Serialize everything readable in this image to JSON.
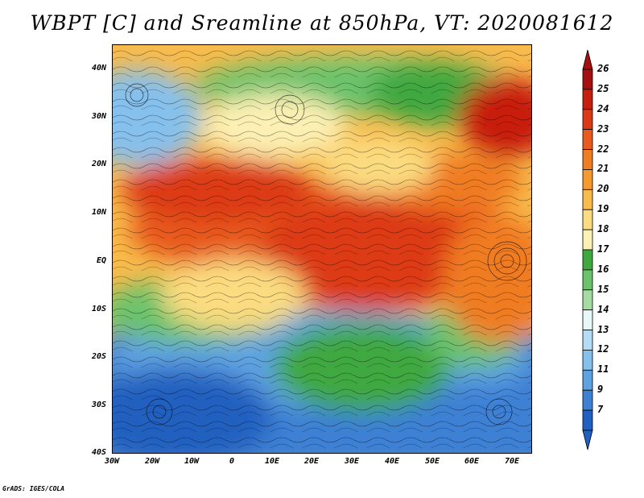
{
  "title": "WBPT [C] and Sreamline at 850hPa, VT: 2020081612",
  "credit": "GrADS: IGES/COLA",
  "map": {
    "lat_ticks": [
      "40N",
      "30N",
      "20N",
      "10N",
      "EQ",
      "10S",
      "20S",
      "30S",
      "40S"
    ],
    "lon_ticks": [
      "30W",
      "20W",
      "10W",
      "0",
      "10E",
      "20E",
      "30E",
      "40E",
      "50E",
      "60E",
      "70E"
    ],
    "lon_range": [
      -30,
      75
    ],
    "lat_range": [
      -40,
      45
    ]
  },
  "colorbar": {
    "labels": [
      "26",
      "25",
      "24",
      "23",
      "22",
      "21",
      "20",
      "19",
      "18",
      "17",
      "16",
      "15",
      "14",
      "13",
      "12",
      "11",
      "9",
      "7"
    ],
    "colors": [
      "#a50f0f",
      "#c81e10",
      "#dc3a16",
      "#e85a1e",
      "#f07c24",
      "#f59a2e",
      "#f8bb4c",
      "#fbdc80",
      "#fcf0b4",
      "#3fa83f",
      "#6cc26c",
      "#a6dca4",
      "#e8f8f8",
      "#b4dcf4",
      "#86c0ec",
      "#5ea2e2",
      "#3e80d4",
      "#2060c0"
    ],
    "icon": "colorbar-arrow-icon"
  }
}
